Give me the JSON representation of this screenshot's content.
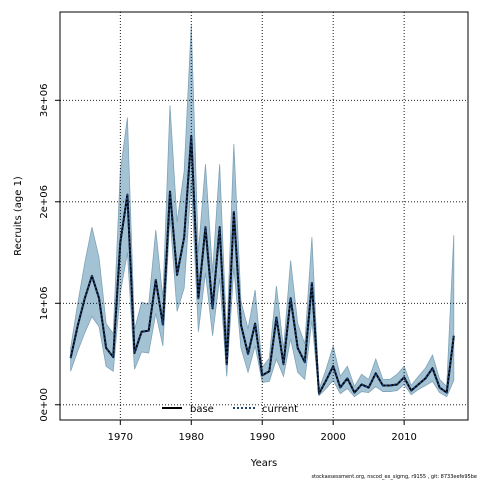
{
  "chart_data": {
    "type": "line",
    "title": "",
    "xlabel": "Years",
    "ylabel": "Recruits (age 1)",
    "xlim": [
      1961.5,
      2019
    ],
    "ylim": [
      -150000,
      3870000
    ],
    "x_ticks": [
      1970,
      1980,
      1990,
      2000,
      2010
    ],
    "x_tick_labels": [
      "1970",
      "1980",
      "1990",
      "2000",
      "2010"
    ],
    "y_ticks": [
      0,
      1000000,
      2000000,
      3000000
    ],
    "y_tick_labels": [
      "0e+00",
      "1e+06",
      "2e+06",
      "3e+06"
    ],
    "grid": "dotted at ticks",
    "legend_position": "bottom-center",
    "x": [
      1963,
      1964,
      1965,
      1966,
      1967,
      1968,
      1969,
      1970,
      1971,
      1972,
      1973,
      1974,
      1975,
      1976,
      1977,
      1978,
      1979,
      1980,
      1981,
      1982,
      1983,
      1984,
      1985,
      1986,
      1987,
      1988,
      1989,
      1990,
      1991,
      1992,
      1993,
      1994,
      1995,
      1996,
      1997,
      1998,
      1999,
      2000,
      2001,
      2002,
      2003,
      2004,
      2005,
      2006,
      2007,
      2008,
      2009,
      2010,
      2011,
      2012,
      2013,
      2014,
      2015,
      2016,
      2017
    ],
    "band": {
      "color": "#a3c2d4",
      "lower": [
        330000,
        530000,
        710000,
        870000,
        770000,
        380000,
        330000,
        1100000,
        1500000,
        350000,
        520000,
        510000,
        900000,
        580000,
        1850000,
        920000,
        1150000,
        2200000,
        720000,
        1300000,
        680000,
        1250000,
        280000,
        1350000,
        560000,
        320000,
        580000,
        220000,
        230000,
        450000,
        280000,
        650000,
        320000,
        250000,
        830000,
        90000,
        160000,
        240000,
        110000,
        160000,
        80000,
        130000,
        120000,
        180000,
        130000,
        130000,
        140000,
        200000,
        100000,
        150000,
        190000,
        230000,
        120000,
        80000,
        240000
      ],
      "upper": [
        560000,
        1000000,
        1400000,
        1750000,
        1450000,
        800000,
        700000,
        2300000,
        2830000,
        740000,
        1010000,
        990000,
        1720000,
        1050000,
        2950000,
        1800000,
        2300000,
        3740000,
        1500000,
        2370000,
        1300000,
        2370000,
        650000,
        2570000,
        1020000,
        750000,
        1130000,
        370000,
        460000,
        1170000,
        550000,
        1420000,
        800000,
        600000,
        1650000,
        150000,
        350000,
        580000,
        280000,
        380000,
        180000,
        300000,
        250000,
        450000,
        250000,
        250000,
        300000,
        380000,
        190000,
        280000,
        360000,
        490000,
        250000,
        180000,
        1670000
      ]
    },
    "series": [
      {
        "name": "base",
        "color": "#000000",
        "values": [
          460000,
          780000,
          1050000,
          1270000,
          1050000,
          560000,
          470000,
          1600000,
          2070000,
          510000,
          720000,
          730000,
          1230000,
          790000,
          2100000,
          1280000,
          1650000,
          2650000,
          1050000,
          1750000,
          950000,
          1750000,
          400000,
          1900000,
          790000,
          500000,
          800000,
          290000,
          330000,
          860000,
          400000,
          1050000,
          560000,
          420000,
          1200000,
          110000,
          240000,
          380000,
          170000,
          260000,
          120000,
          200000,
          170000,
          310000,
          190000,
          190000,
          200000,
          270000,
          140000,
          200000,
          260000,
          360000,
          170000,
          120000,
          680000
        ]
      },
      {
        "name": "current",
        "color": "#1b3f73",
        "values": [
          460000,
          780000,
          1050000,
          1270000,
          1050000,
          560000,
          470000,
          1600000,
          2070000,
          510000,
          720000,
          730000,
          1230000,
          790000,
          2100000,
          1280000,
          1650000,
          2650000,
          1050000,
          1750000,
          950000,
          1750000,
          400000,
          1900000,
          790000,
          500000,
          800000,
          290000,
          330000,
          860000,
          400000,
          1050000,
          560000,
          420000,
          1200000,
          110000,
          240000,
          380000,
          170000,
          260000,
          120000,
          200000,
          170000,
          310000,
          190000,
          190000,
          200000,
          270000,
          140000,
          200000,
          260000,
          360000,
          170000,
          120000,
          680000
        ]
      }
    ]
  },
  "legend": {
    "items": [
      {
        "label": "base",
        "style": "solid"
      },
      {
        "label": "current",
        "style": "dotted"
      }
    ]
  },
  "footer": {
    "caption": "stockassessment.org, nscod_ex_sigmg, r9155 , git: 8733eefe95be"
  }
}
